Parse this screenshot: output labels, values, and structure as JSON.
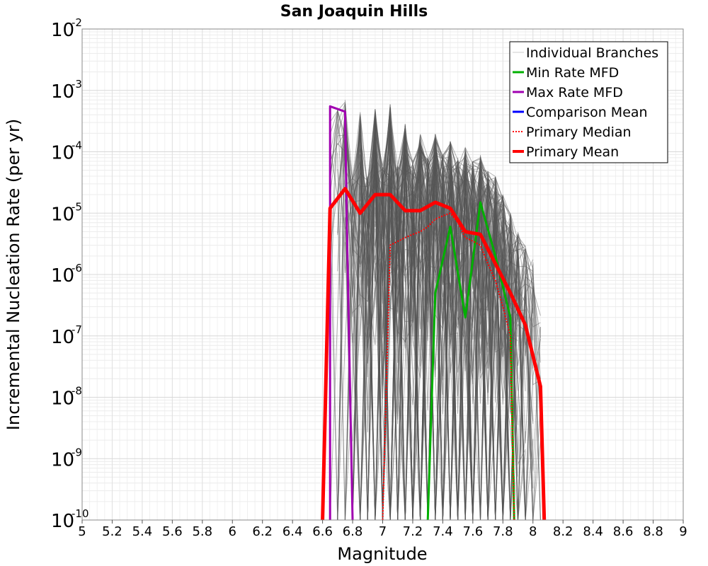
{
  "chart_data": {
    "type": "line",
    "title": "San Joaquin Hills",
    "xlabel": "Magnitude",
    "ylabel": "Incremental Nucleation Rate (per yr)",
    "xlim": [
      5,
      9
    ],
    "ylim": [
      1e-10,
      0.01
    ],
    "yscale": "log",
    "grid": true,
    "legend_position": "top-right",
    "x_ticks": [
      "5",
      "5.2",
      "5.4",
      "5.6",
      "5.8",
      "6",
      "6.2",
      "6.4",
      "6.6",
      "6.8",
      "7",
      "7.2",
      "7.4",
      "7.6",
      "7.8",
      "8",
      "8.2",
      "8.4",
      "8.6",
      "8.8",
      "9"
    ],
    "y_ticks": [
      {
        "base": "10",
        "exp": "-2",
        "value": 0.01
      },
      {
        "base": "10",
        "exp": "-3",
        "value": 0.001
      },
      {
        "base": "10",
        "exp": "-4",
        "value": 0.0001
      },
      {
        "base": "10",
        "exp": "-5",
        "value": 1e-05
      },
      {
        "base": "10",
        "exp": "-6",
        "value": 1e-06
      },
      {
        "base": "10",
        "exp": "-7",
        "value": 1e-07
      },
      {
        "base": "10",
        "exp": "-8",
        "value": 1e-08
      },
      {
        "base": "10",
        "exp": "-9",
        "value": 1e-09
      },
      {
        "base": "10",
        "exp": "-10",
        "value": 1e-10
      }
    ],
    "series": [
      {
        "name": "Individual Branches",
        "color": "#555555",
        "style": "thin",
        "envelope": {
          "x": [
            6.65,
            6.7,
            6.75,
            6.8,
            6.85,
            6.9,
            6.95,
            7.0,
            7.05,
            7.1,
            7.15,
            7.2,
            7.25,
            7.3,
            7.35,
            7.4,
            7.45,
            7.5,
            7.55,
            7.6,
            7.65,
            7.7,
            7.75,
            7.8,
            7.85,
            7.9,
            7.95,
            8.0,
            8.05
          ],
          "upper": [
            0.0004,
            0.0005,
            0.0007,
            4e-05,
            0.0005,
            4e-05,
            0.0005,
            6e-05,
            0.0006,
            6e-05,
            0.0003,
            7e-05,
            0.0002,
            8e-05,
            0.0002,
            9e-05,
            0.00015,
            8e-05,
            0.00012,
            7e-05,
            9e-05,
            5e-05,
            4e-05,
            2e-05,
            1e-05,
            5e-06,
            3e-06,
            2e-06,
            3e-07
          ]
        }
      },
      {
        "name": "Min Rate MFD",
        "color": "#00b000",
        "style": "solid",
        "x": [
          7.3,
          7.35,
          7.45,
          7.55,
          7.65,
          7.75,
          7.85,
          7.875
        ],
        "y": [
          1e-10,
          5e-07,
          6e-06,
          2e-07,
          1.5e-05,
          2e-06,
          2e-07,
          1e-10
        ]
      },
      {
        "name": "Max Rate MFD",
        "color": "#a000b0",
        "style": "solid",
        "x": [
          6.65,
          6.65,
          6.75,
          6.76,
          6.8
        ],
        "y": [
          1e-10,
          0.00055,
          0.00045,
          1e-05,
          1e-10
        ]
      },
      {
        "name": "Comparison Mean",
        "color": "#0000ff",
        "style": "solid",
        "x": [],
        "y": []
      },
      {
        "name": "Primary Median",
        "color": "#ff0000",
        "style": "dotted",
        "x": [
          7.0,
          7.05,
          7.15,
          7.2,
          7.25,
          7.3,
          7.35,
          7.4,
          7.45,
          7.5,
          7.55,
          7.6,
          7.65,
          7.7,
          7.75,
          7.8,
          7.85,
          7.875
        ],
        "y": [
          1e-10,
          3e-06,
          4e-06,
          4.5e-06,
          5e-06,
          6e-06,
          8e-06,
          9e-06,
          1e-05,
          7e-06,
          4e-06,
          3.5e-06,
          3e-06,
          1.5e-06,
          8e-07,
          3e-07,
          1e-07,
          1e-10
        ]
      },
      {
        "name": "Primary Mean",
        "color": "#ff0000",
        "style": "thick",
        "x": [
          6.6,
          6.65,
          6.75,
          6.85,
          6.95,
          7.05,
          7.15,
          7.25,
          7.35,
          7.45,
          7.55,
          7.65,
          7.75,
          7.85,
          7.95,
          8.05,
          8.075
        ],
        "y": [
          1e-10,
          1.2e-05,
          2.5e-05,
          1e-05,
          2e-05,
          2e-05,
          1.1e-05,
          1.1e-05,
          1.5e-05,
          1.2e-05,
          5e-06,
          4.5e-06,
          1.5e-06,
          5e-07,
          1.5e-07,
          1.5e-08,
          1e-10
        ]
      }
    ]
  }
}
